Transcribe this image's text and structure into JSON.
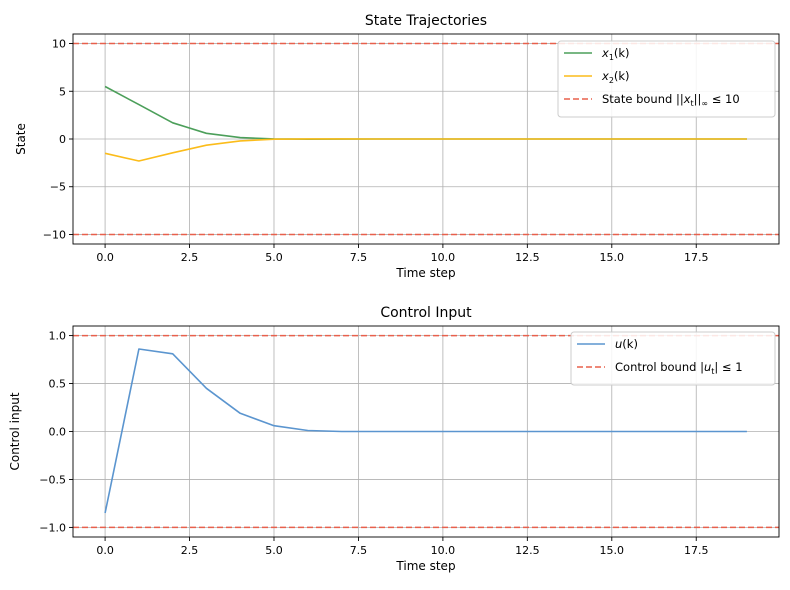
{
  "colors": {
    "x1": "#4c9f5a",
    "x2": "#fbbc1a",
    "u": "#5b95cf",
    "bound": "#e8604c",
    "grid": "#b0b0b0"
  },
  "chart_data": [
    {
      "type": "line",
      "title": "State Trajectories",
      "xlabel": "Time step",
      "ylabel": "State",
      "xlim": [
        -0.95,
        19.95
      ],
      "ylim": [
        -11,
        11
      ],
      "xticks": [
        0,
        2.5,
        5,
        7.5,
        10,
        12.5,
        15,
        17.5
      ],
      "xtick_labels": [
        "0.0",
        "2.5",
        "5.0",
        "7.5",
        "10.0",
        "12.5",
        "15.0",
        "17.5"
      ],
      "yticks": [
        -10,
        -5,
        0,
        5,
        10
      ],
      "ytick_labels": [
        "−10",
        "−5",
        "0",
        "5",
        "10"
      ],
      "grid": true,
      "legend_position": "top-right",
      "x": [
        0,
        1,
        2,
        3,
        4,
        5,
        6,
        7,
        8,
        9,
        10,
        11,
        12,
        13,
        14,
        15,
        16,
        17,
        18,
        19
      ],
      "series": [
        {
          "name": "x₁(k)",
          "legend": {
            "main": "x",
            "sub": "1",
            "rest": "(k)"
          },
          "color_key": "x1",
          "values": [
            5.5,
            3.6,
            1.7,
            0.6,
            0.15,
            0.01,
            -0.02,
            -0.01,
            0,
            0,
            0,
            0,
            0,
            0,
            0,
            0,
            0,
            0,
            0,
            0
          ]
        },
        {
          "name": "x₂(k)",
          "legend": {
            "main": "x",
            "sub": "2",
            "rest": "(k)"
          },
          "color_key": "x2",
          "values": [
            -1.5,
            -2.3,
            -1.45,
            -0.65,
            -0.2,
            -0.02,
            0.01,
            0.01,
            0,
            0,
            0,
            0,
            0,
            0,
            0,
            0,
            0,
            0,
            0,
            0
          ]
        }
      ],
      "bounds": [
        10,
        -10
      ],
      "bound_legend": "State bound ||xₜ||∞ ≤ 10",
      "bound_legend_parts": {
        "pre": "State bound ||",
        "main": "x",
        "sub": "t",
        "mid": "||",
        "sub2": "∞",
        "post": " ≤ 10"
      }
    },
    {
      "type": "line",
      "title": "Control Input",
      "xlabel": "Time step",
      "ylabel": "Control input",
      "xlim": [
        -0.95,
        19.95
      ],
      "ylim": [
        -1.1,
        1.1
      ],
      "xticks": [
        0,
        2.5,
        5,
        7.5,
        10,
        12.5,
        15,
        17.5
      ],
      "xtick_labels": [
        "0.0",
        "2.5",
        "5.0",
        "7.5",
        "10.0",
        "12.5",
        "15.0",
        "17.5"
      ],
      "yticks": [
        -1,
        -0.5,
        0,
        0.5,
        1
      ],
      "ytick_labels": [
        "−1.0",
        "−0.5",
        "0.0",
        "0.5",
        "1.0"
      ],
      "grid": true,
      "legend_position": "top-right",
      "x": [
        0,
        1,
        2,
        3,
        4,
        5,
        6,
        7,
        8,
        9,
        10,
        11,
        12,
        13,
        14,
        15,
        16,
        17,
        18,
        19
      ],
      "series": [
        {
          "name": "u(k)",
          "legend": {
            "main": "u",
            "sub": "",
            "rest": "(k)"
          },
          "color_key": "u",
          "values": [
            -0.85,
            0.86,
            0.81,
            0.45,
            0.19,
            0.06,
            0.01,
            0.0,
            0.0,
            0.0,
            0.0,
            0.0,
            0.0,
            0.0,
            0.0,
            0.0,
            0.0,
            0.0,
            0.0,
            0.0
          ]
        }
      ],
      "bounds": [
        1,
        -1
      ],
      "bound_legend": "Control bound |uₜ| ≤ 1",
      "bound_legend_parts": {
        "pre": "Control bound |",
        "main": "u",
        "sub": "t",
        "mid": "|",
        "sub2": "",
        "post": " ≤ 1"
      }
    }
  ]
}
